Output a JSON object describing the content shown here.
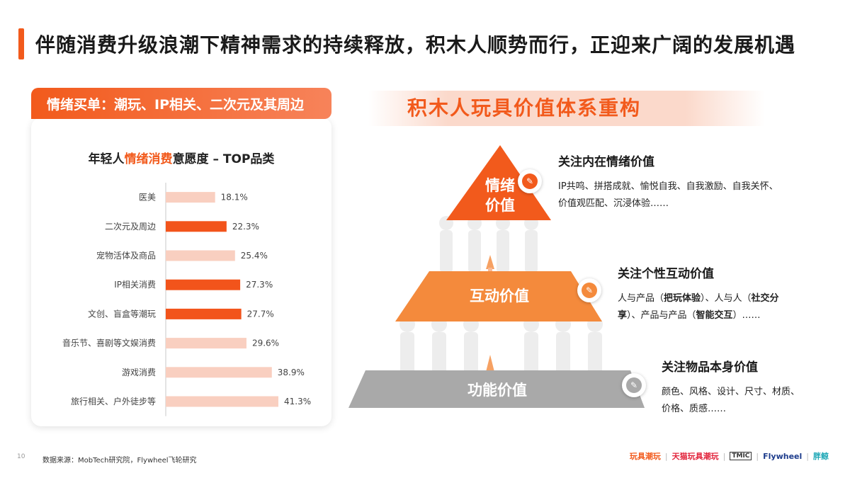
{
  "header": {
    "title": "伴随消费升级浪潮下精神需求的持续释放，积木人顺势而行，正迎来广阔的发展机遇"
  },
  "left": {
    "tag": "情绪买单：潮玩、IP相关、二次元及其周边",
    "chart_title_pre": "年轻人",
    "chart_title_hl": "情绪消费",
    "chart_title_post": "意愿度 – TOP品类"
  },
  "chart_data": {
    "type": "bar",
    "orientation": "horizontal",
    "title": "年轻人情绪消费意愿度 – TOP品类",
    "categories": [
      "医美",
      "二次元及周边",
      "宠物活体及商品",
      "IP相关消费",
      "文创、盲盒等潮玩",
      "音乐节、喜剧等文娱消费",
      "游戏消费",
      "旅行相关、户外徒步等"
    ],
    "values": [
      18.1,
      22.3,
      25.4,
      27.3,
      27.7,
      29.6,
      38.9,
      41.3
    ],
    "value_labels": [
      "18.1%",
      "22.3%",
      "25.4%",
      "27.3%",
      "27.7%",
      "29.6%",
      "38.9%",
      "41.3%"
    ],
    "highlighted": [
      false,
      true,
      false,
      true,
      true,
      false,
      false,
      false
    ],
    "colors": {
      "highlight": "#f2541b",
      "normal": "#f9cfc0"
    }
  },
  "right": {
    "title": "积木人玩具价值体系重构",
    "tiers": [
      {
        "label_line1": "情绪",
        "label_line2": "价值",
        "heading": "关注内在情绪价值",
        "body_line1": "IP共鸣、拼搭成就、愉悦自我、自我激励、自我关怀、",
        "body_line2": "价值观匹配、沉浸体验……",
        "color": "#f25a1c"
      },
      {
        "label": "互动价值",
        "heading": "关注个性互动价值",
        "body_a": "人与产品（",
        "body_b": "把玩体验",
        "body_c": "）、人与人（",
        "body_d": "社交分",
        "body_e": "享",
        "body_f": "）、产品与产品（",
        "body_g": "智能交互",
        "body_h": "）……",
        "color": "#f48a3c"
      },
      {
        "label": "功能价值",
        "heading": "关注物品本身价值",
        "body_line1": "颜色、风格、设计、尺寸、材质、",
        "body_line2": "价格、质感……",
        "color": "#a9a9a9"
      }
    ]
  },
  "footer": {
    "page_number": "10",
    "source": "数据来源：MobTech研究院，Flywheel飞轮研究",
    "logos": [
      "玩具潮玩",
      "天猫玩具潮玩",
      "TMIC",
      "Flywheel",
      "胖鲸"
    ]
  }
}
